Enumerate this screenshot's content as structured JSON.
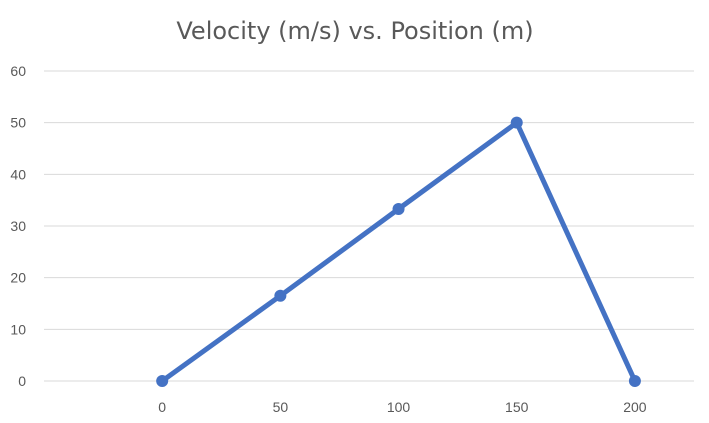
{
  "chart_data": {
    "type": "line",
    "title": "Velocity (m/s) vs. Position (m)",
    "xlabel": "",
    "ylabel": "",
    "x": [
      0,
      50,
      100,
      150,
      200
    ],
    "series": [
      {
        "values": [
          0,
          16.5,
          33.3,
          50,
          0
        ]
      }
    ],
    "x_ticks": [
      0,
      50,
      100,
      150,
      200
    ],
    "y_ticks": [
      0,
      10,
      20,
      30,
      40,
      50,
      60
    ],
    "xlim": [
      -50,
      225
    ],
    "ylim": [
      0,
      60
    ],
    "grid": true,
    "legend": "none",
    "colors": {
      "series": "#4472c4",
      "grid": "#d9d9d9",
      "text": "#595959"
    }
  }
}
